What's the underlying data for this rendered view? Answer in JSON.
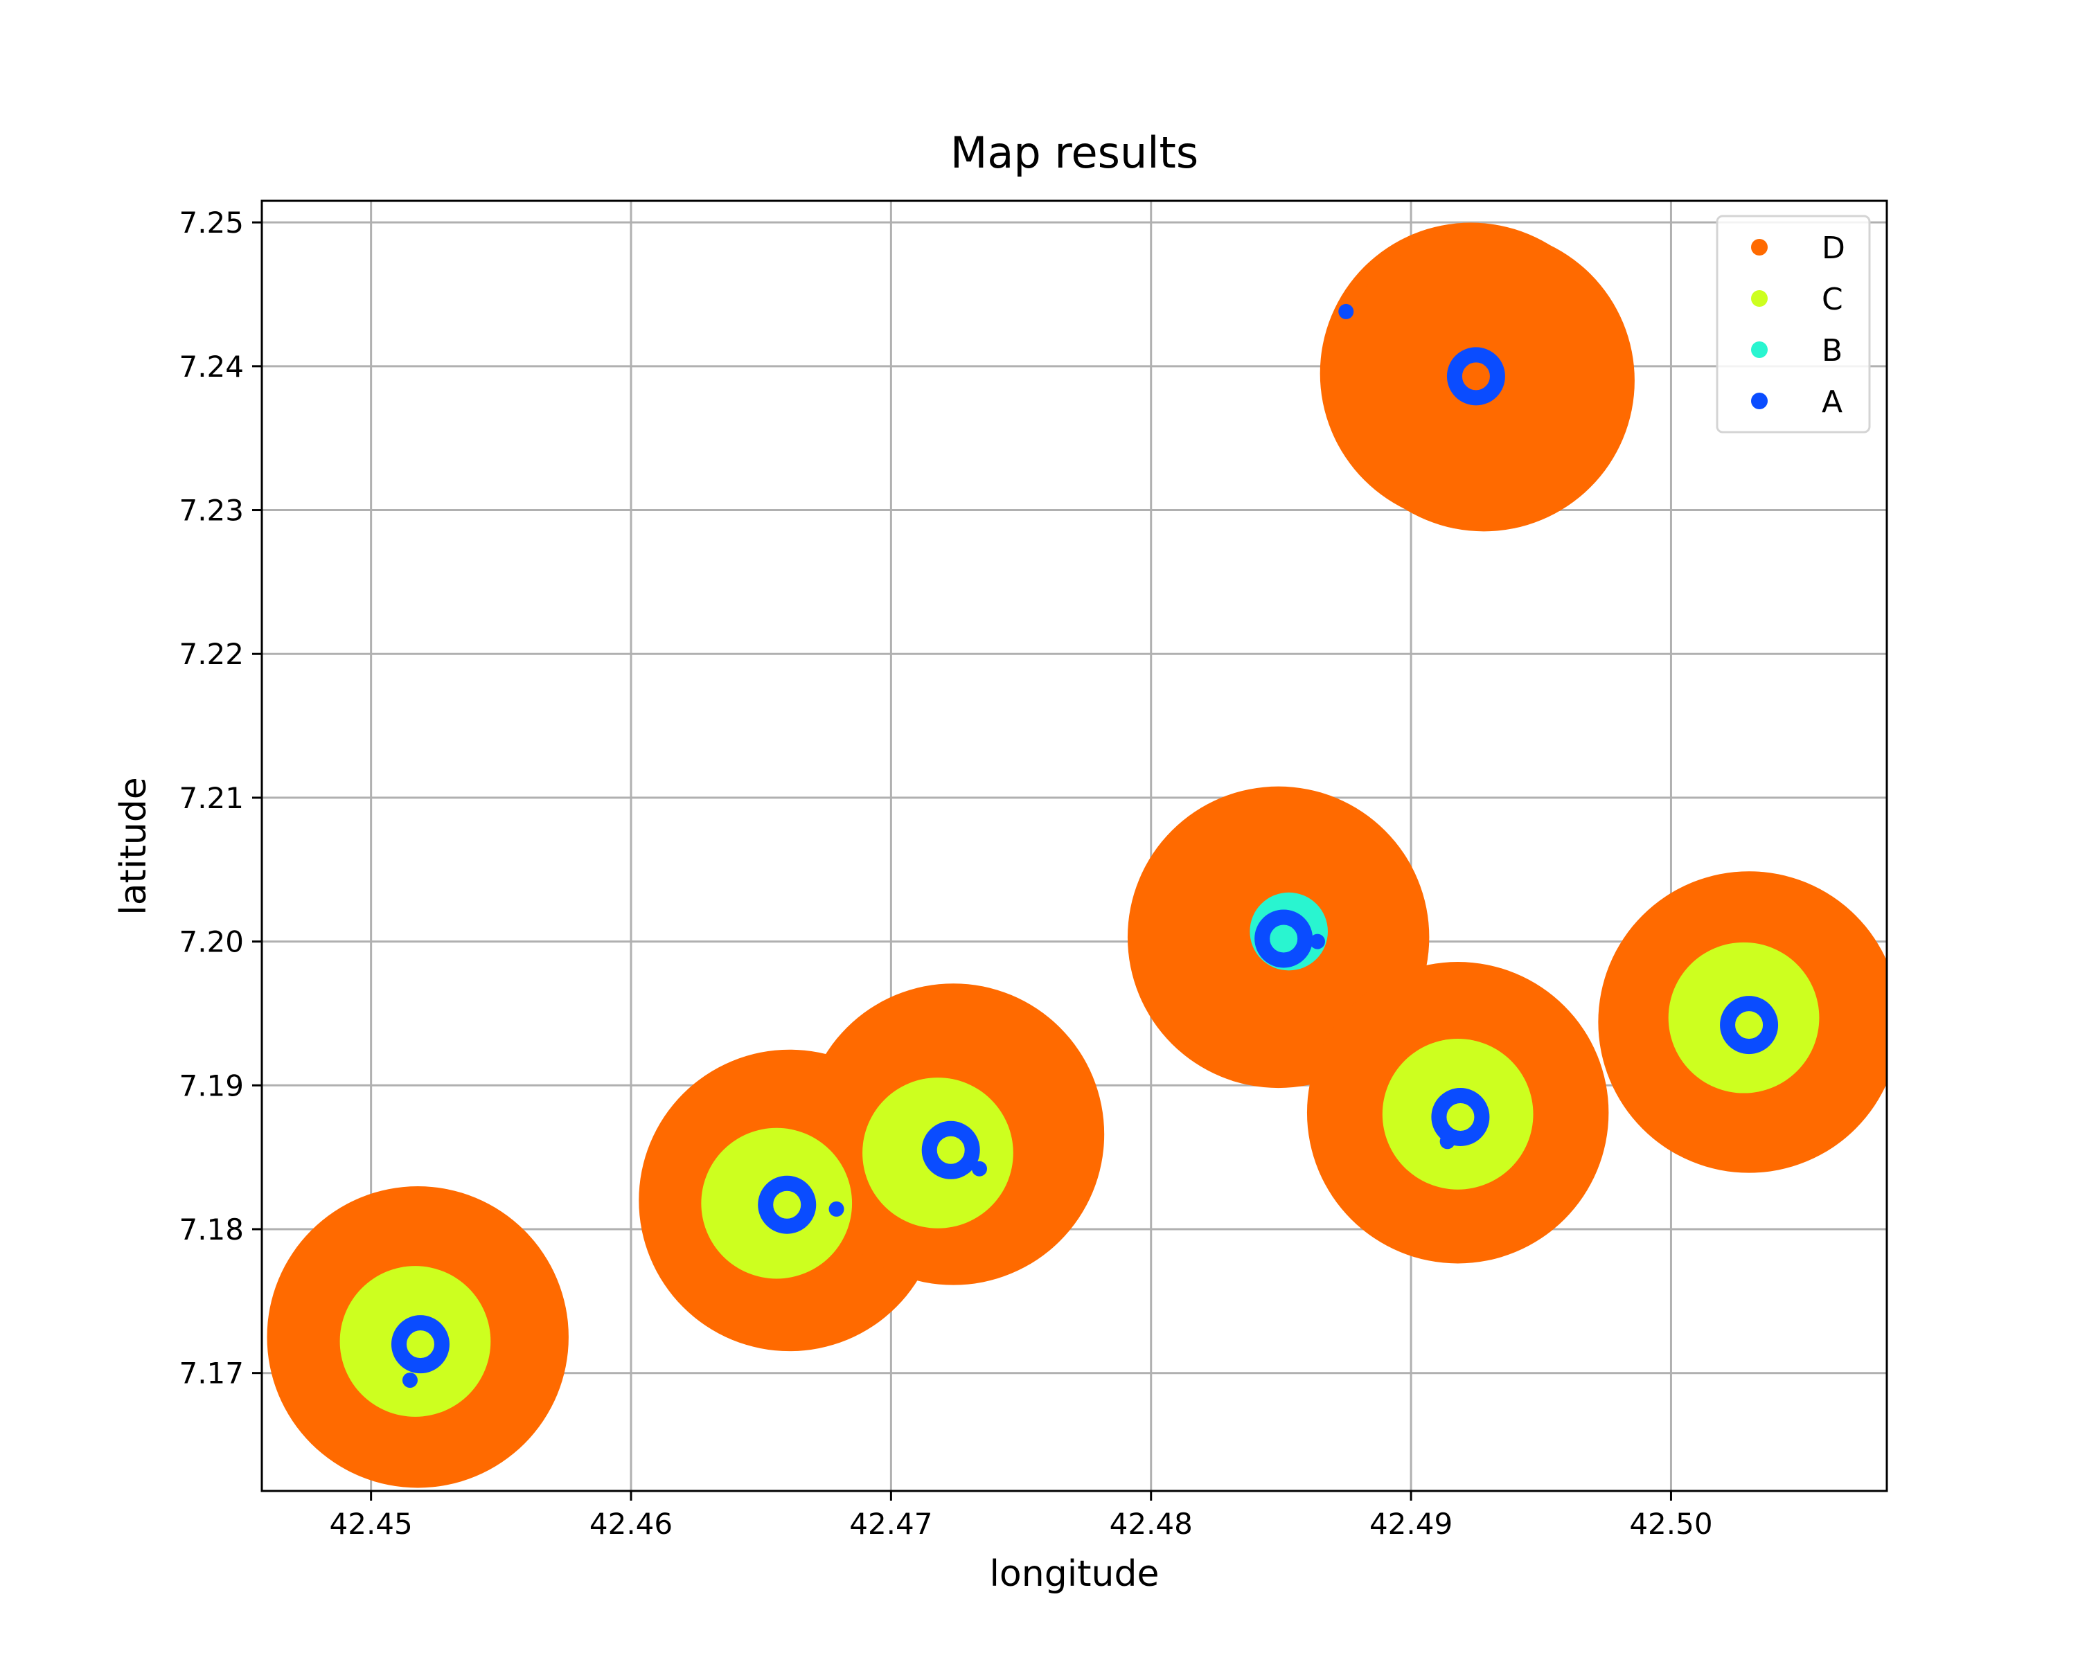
{
  "chart_data": {
    "type": "scatter",
    "title": "Map results",
    "xlabel": "longitude",
    "ylabel": "latitude",
    "xlim": [
      42.4458,
      42.5083
    ],
    "ylim": [
      7.1618,
      7.2515
    ],
    "xticks": [
      "42.45",
      "42.46",
      "42.47",
      "42.48",
      "42.49",
      "42.50"
    ],
    "yticks": [
      "7.17",
      "7.18",
      "7.19",
      "7.20",
      "7.21",
      "7.22",
      "7.23",
      "7.24",
      "7.25"
    ],
    "grid": true,
    "legend_position": "top-right",
    "series": [
      {
        "name": "D",
        "color": "#ff6a00",
        "radius_deg": 0.0058,
        "points": [
          {
            "x": 42.4923,
            "y": 7.2395
          },
          {
            "x": 42.4928,
            "y": 7.239
          },
          {
            "x": 42.4518,
            "y": 7.1725
          },
          {
            "x": 42.4661,
            "y": 7.182
          },
          {
            "x": 42.4724,
            "y": 7.1866
          },
          {
            "x": 42.4849,
            "y": 7.2003
          },
          {
            "x": 42.4918,
            "y": 7.1881
          },
          {
            "x": 42.503,
            "y": 7.1944
          }
        ]
      },
      {
        "name": "C",
        "color": "#cdff1f",
        "radius_deg": 0.0029,
        "points": [
          {
            "x": 42.4517,
            "y": 7.1722
          },
          {
            "x": 42.4656,
            "y": 7.1818
          },
          {
            "x": 42.4718,
            "y": 7.1853
          },
          {
            "x": 42.4918,
            "y": 7.188
          },
          {
            "x": 42.5028,
            "y": 7.1947
          }
        ]
      },
      {
        "name": "B",
        "color": "#29f5d0",
        "radius_deg": 0.0015,
        "points": [
          {
            "x": 42.4853,
            "y": 7.2007
          }
        ]
      },
      {
        "name": "A",
        "color": "#0a4cff",
        "points": [
          {
            "x": 42.4925,
            "y": 7.2393,
            "ring": true
          },
          {
            "x": 42.4875,
            "y": 7.2438
          },
          {
            "x": 42.4519,
            "y": 7.172,
            "ring": true
          },
          {
            "x": 42.4515,
            "y": 7.1695
          },
          {
            "x": 42.466,
            "y": 7.1817,
            "ring": true
          },
          {
            "x": 42.4679,
            "y": 7.1814
          },
          {
            "x": 42.4723,
            "y": 7.1855,
            "ring": true
          },
          {
            "x": 42.4734,
            "y": 7.1842
          },
          {
            "x": 42.4851,
            "y": 7.2002,
            "ring": true
          },
          {
            "x": 42.4864,
            "y": 7.2
          },
          {
            "x": 42.4919,
            "y": 7.1878,
            "ring": true
          },
          {
            "x": 42.4914,
            "y": 7.1861
          },
          {
            "x": 42.503,
            "y": 7.1942,
            "ring": true
          }
        ]
      }
    ],
    "legend": [
      "D",
      "C",
      "B",
      "A"
    ]
  }
}
